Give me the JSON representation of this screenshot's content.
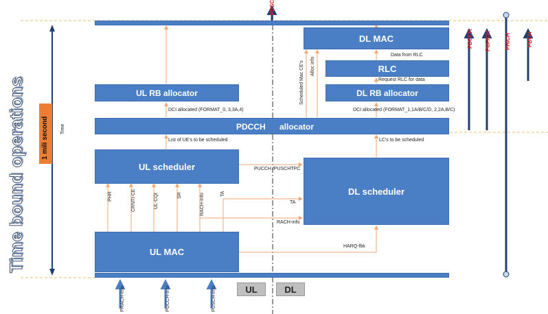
{
  "left": {
    "title": "Time bound operations",
    "duration": "1 mili second",
    "time_label": "Time"
  },
  "blocks": {
    "dl_mac": "DL MAC",
    "rlc": "RLC",
    "dl_rb_allocator": "DL RB allocator",
    "ul_rb_allocator": "UL RB allocator",
    "pdcch_allocator_1": "PDCCH",
    "pdcch_allocator_2": "allocator",
    "ul_scheduler": "UL scheduler",
    "dl_scheduler": "DL scheduler",
    "ul_mac": "UL MAC"
  },
  "labels": {
    "data_from_rlc": "Data from RLC",
    "request_rlc": "Request RLC for data",
    "dci_dl": "DCI allocated  (FORMAT_1,1A/B/C/D, 2,2A,B/C)",
    "dci_ul": "DCI allocated (FORMAT_0, 3,3A,4)",
    "list_ues": "List of UE's to be scheduled",
    "lcs": "LC's to be scheduled",
    "pucch_puschtpc": "PUCCH /PUSCHTPC",
    "ta": "TA",
    "rach_info_h": "RACH-info",
    "harq_fbk": "HARQ-fbk",
    "sched_mac_ces": "Scheduled Mac CE's",
    "alloc_info": "Alloc info",
    "phr": "PHR",
    "crnti_ce": "CRNTI-CE",
    "ul_cqi": "UL-CQI",
    "sr": "SR",
    "rach_info_v": "RACH-Info",
    "ta_v": "TA",
    "prach_info": "PRACH-info",
    "pucch_info": "PUCCH-info",
    "pusch_info": "PUSCH-info"
  },
  "side_channels": {
    "pdsch": "PDSCH",
    "pdcch": "PDCCH",
    "pcfich": "PCFICH",
    "phich": "PHICH",
    "pbch": "PBCH"
  },
  "domains": {
    "ul": "UL",
    "dl": "DL"
  },
  "colors": {
    "block": "#4a7fc6",
    "arrow_orange": "#f2a774",
    "navy": "#1f3f73",
    "red": "#e02020",
    "orange_box": "#ed7d31"
  }
}
